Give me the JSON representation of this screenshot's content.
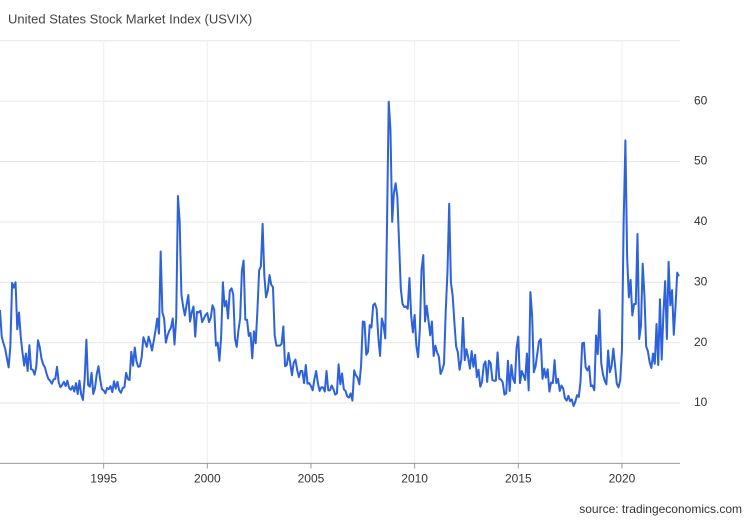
{
  "chart_data": {
    "type": "line",
    "title": "United States Stock Market Index (USVIX)",
    "source": "source: tradingeconomics.com",
    "xlim": [
      1990,
      2022.8
    ],
    "xticks": [
      1995,
      2000,
      2005,
      2010,
      2015,
      2020
    ],
    "ylim": [
      0,
      70
    ],
    "yticks": [
      10,
      20,
      30,
      40,
      50,
      60
    ],
    "grid": true,
    "series": [
      {
        "name": "USVIX",
        "color": "#2d62dc",
        "x": [
          1990,
          1990.083,
          1990.167,
          1990.25,
          1990.333,
          1990.417,
          1990.5,
          1990.583,
          1990.667,
          1990.75,
          1990.833,
          1990.917,
          1991,
          1991.083,
          1991.167,
          1991.25,
          1991.333,
          1991.417,
          1991.5,
          1991.583,
          1991.667,
          1991.75,
          1991.833,
          1991.917,
          1992,
          1992.083,
          1992.167,
          1992.25,
          1992.333,
          1992.417,
          1992.5,
          1992.583,
          1992.667,
          1992.75,
          1992.833,
          1992.917,
          1993,
          1993.083,
          1993.167,
          1993.25,
          1993.333,
          1993.417,
          1993.5,
          1993.583,
          1993.667,
          1993.75,
          1993.833,
          1993.917,
          1994,
          1994.083,
          1994.167,
          1994.25,
          1994.333,
          1994.417,
          1994.5,
          1994.583,
          1994.667,
          1994.75,
          1994.833,
          1994.917,
          1995,
          1995.083,
          1995.167,
          1995.25,
          1995.333,
          1995.417,
          1995.5,
          1995.583,
          1995.667,
          1995.75,
          1995.833,
          1995.917,
          1996,
          1996.083,
          1996.167,
          1996.25,
          1996.333,
          1996.417,
          1996.5,
          1996.583,
          1996.667,
          1996.75,
          1996.833,
          1996.917,
          1997,
          1997.083,
          1997.167,
          1997.25,
          1997.333,
          1997.417,
          1997.5,
          1997.583,
          1997.667,
          1997.75,
          1997.833,
          1997.917,
          1998,
          1998.083,
          1998.167,
          1998.25,
          1998.333,
          1998.417,
          1998.5,
          1998.583,
          1998.667,
          1998.75,
          1998.833,
          1998.917,
          1999,
          1999.083,
          1999.167,
          1999.25,
          1999.333,
          1999.417,
          1999.5,
          1999.583,
          1999.667,
          1999.75,
          1999.833,
          1999.917,
          2000,
          2000.083,
          2000.167,
          2000.25,
          2000.333,
          2000.417,
          2000.5,
          2000.583,
          2000.667,
          2000.75,
          2000.833,
          2000.917,
          2001,
          2001.083,
          2001.167,
          2001.25,
          2001.333,
          2001.417,
          2001.5,
          2001.583,
          2001.667,
          2001.75,
          2001.833,
          2001.917,
          2002,
          2002.083,
          2002.167,
          2002.25,
          2002.333,
          2002.417,
          2002.5,
          2002.583,
          2002.667,
          2002.75,
          2002.833,
          2002.917,
          2003,
          2003.083,
          2003.167,
          2003.25,
          2003.333,
          2003.417,
          2003.5,
          2003.583,
          2003.667,
          2003.75,
          2003.833,
          2003.917,
          2004,
          2004.083,
          2004.167,
          2004.25,
          2004.333,
          2004.417,
          2004.5,
          2004.583,
          2004.667,
          2004.75,
          2004.833,
          2004.917,
          2005,
          2005.083,
          2005.167,
          2005.25,
          2005.333,
          2005.417,
          2005.5,
          2005.583,
          2005.667,
          2005.75,
          2005.833,
          2005.917,
          2006,
          2006.083,
          2006.167,
          2006.25,
          2006.333,
          2006.417,
          2006.5,
          2006.583,
          2006.667,
          2006.75,
          2006.833,
          2006.917,
          2007,
          2007.083,
          2007.167,
          2007.25,
          2007.333,
          2007.417,
          2007.5,
          2007.583,
          2007.667,
          2007.75,
          2007.833,
          2007.917,
          2008,
          2008.083,
          2008.167,
          2008.25,
          2008.333,
          2008.417,
          2008.5,
          2008.583,
          2008.667,
          2008.75,
          2008.833,
          2008.917,
          2009,
          2009.083,
          2009.167,
          2009.25,
          2009.333,
          2009.417,
          2009.5,
          2009.583,
          2009.667,
          2009.75,
          2009.833,
          2009.917,
          2010,
          2010.083,
          2010.167,
          2010.25,
          2010.333,
          2010.417,
          2010.5,
          2010.583,
          2010.667,
          2010.75,
          2010.833,
          2010.917,
          2011,
          2011.083,
          2011.167,
          2011.25,
          2011.333,
          2011.417,
          2011.5,
          2011.583,
          2011.667,
          2011.75,
          2011.833,
          2011.917,
          2012,
          2012.083,
          2012.167,
          2012.25,
          2012.333,
          2012.417,
          2012.5,
          2012.583,
          2012.667,
          2012.75,
          2012.833,
          2012.917,
          2013,
          2013.083,
          2013.167,
          2013.25,
          2013.333,
          2013.417,
          2013.5,
          2013.583,
          2013.667,
          2013.75,
          2013.833,
          2013.917,
          2014,
          2014.083,
          2014.167,
          2014.25,
          2014.333,
          2014.417,
          2014.5,
          2014.583,
          2014.667,
          2014.75,
          2014.833,
          2014.917,
          2015,
          2015.083,
          2015.167,
          2015.25,
          2015.333,
          2015.417,
          2015.5,
          2015.583,
          2015.667,
          2015.75,
          2015.833,
          2015.917,
          2016,
          2016.083,
          2016.167,
          2016.25,
          2016.333,
          2016.417,
          2016.5,
          2016.583,
          2016.667,
          2016.75,
          2016.833,
          2016.917,
          2017,
          2017.083,
          2017.167,
          2017.25,
          2017.333,
          2017.417,
          2017.5,
          2017.583,
          2017.667,
          2017.75,
          2017.833,
          2017.917,
          2018,
          2018.083,
          2018.167,
          2018.25,
          2018.333,
          2018.417,
          2018.5,
          2018.583,
          2018.667,
          2018.75,
          2018.833,
          2018.917,
          2019,
          2019.083,
          2019.167,
          2019.25,
          2019.333,
          2019.417,
          2019.5,
          2019.583,
          2019.667,
          2019.75,
          2019.833,
          2019.917,
          2020,
          2020.083,
          2020.167,
          2020.25,
          2020.333,
          2020.417,
          2020.5,
          2020.583,
          2020.667,
          2020.75,
          2020.833,
          2020.917,
          2021,
          2021.083,
          2021.167,
          2021.25,
          2021.333,
          2021.417,
          2021.5,
          2021.583,
          2021.667,
          2021.75,
          2021.833,
          2021.917,
          2022,
          2022.083,
          2022.167,
          2022.25,
          2022.333,
          2022.417,
          2022.5,
          2022.583,
          2022.667,
          2022.75
        ],
        "values": [
          25.4,
          21.0,
          19.9,
          19.0,
          17.4,
          15.9,
          19.5,
          29.9,
          29.1,
          30.0,
          22.2,
          25.0,
          21.0,
          18.4,
          16.2,
          18.2,
          15.3,
          19.6,
          15.6,
          15.5,
          14.7,
          16.0,
          20.4,
          19.3,
          17.4,
          16.4,
          15.9,
          14.8,
          14.0,
          13.7,
          13.2,
          13.9,
          14.0,
          16.0,
          13.4,
          12.6,
          13.0,
          13.5,
          12.8,
          13.7,
          12.5,
          12.2,
          12.8,
          11.9,
          13.3,
          11.5,
          13.7,
          11.4,
          10.5,
          14.0,
          20.5,
          13.0,
          12.7,
          15.0,
          11.5,
          12.5,
          14.8,
          16.1,
          13.9,
          12.3,
          12.1,
          11.6,
          12.5,
          12.3,
          12.8,
          11.8,
          13.6,
          12.4,
          13.5,
          12.1,
          11.7,
          12.5,
          12.6,
          15.0,
          14.0,
          13.8,
          18.5,
          16.2,
          19.2,
          16.9,
          16.0,
          16.1,
          17.6,
          20.9,
          20.1,
          19.3,
          21.0,
          20.0,
          18.7,
          20.3,
          22.0,
          24.0,
          21.5,
          35.1,
          25.0,
          24.0,
          20.0,
          21.2,
          22.0,
          22.5,
          24.0,
          19.7,
          24.0,
          44.3,
          40.0,
          28.0,
          26.0,
          24.5,
          26.3,
          27.9,
          23.5,
          25.0,
          26.0,
          21.0,
          25.1,
          25.0,
          25.3,
          23.4,
          24.0,
          24.6,
          24.9,
          23.4,
          24.1,
          26.2,
          25.5,
          19.5,
          20.0,
          17.0,
          21.0,
          30.0,
          26.0,
          26.9,
          24.0,
          28.6,
          29.0,
          28.0,
          20.7,
          19.3,
          22.0,
          24.0,
          31.9,
          33.6,
          23.8,
          23.8,
          21.1,
          21.6,
          17.4,
          21.9,
          19.9,
          25.4,
          32.0,
          32.6,
          39.7,
          31.1,
          27.5,
          28.6,
          31.2,
          29.6,
          29.2,
          21.2,
          19.5,
          19.5,
          19.5,
          19.8,
          22.7,
          16.1,
          16.3,
          18.3,
          16.6,
          14.6,
          16.7,
          17.2,
          15.5,
          14.3,
          15.3,
          15.3,
          13.3,
          16.3,
          13.2,
          13.3,
          12.8,
          12.1,
          14.0,
          15.3,
          13.3,
          12.0,
          12.6,
          12.6,
          11.9,
          15.3,
          12.1,
          12.1,
          12.9,
          12.3,
          11.4,
          11.6,
          16.4,
          13.1,
          14.9,
          12.3,
          12.0,
          11.1,
          10.9,
          11.6,
          10.4,
          15.4,
          14.6,
          14.2,
          13.1,
          16.2,
          23.5,
          23.4,
          18.0,
          18.5,
          22.9,
          22.5,
          26.2,
          26.5,
          25.6,
          20.8,
          17.8,
          24.0,
          22.9,
          20.7,
          39.4,
          59.9,
          55.3,
          40.0,
          44.8,
          46.4,
          44.1,
          36.5,
          28.9,
          26.4,
          25.9,
          26.0,
          25.6,
          30.7,
          24.5,
          21.7,
          24.6,
          19.5,
          17.6,
          22.1,
          32.1,
          34.5,
          23.5,
          26.1,
          23.7,
          21.2,
          23.5,
          17.8,
          19.5,
          18.4,
          17.7,
          14.8,
          15.5,
          16.5,
          25.3,
          31.6,
          43.0,
          30.0,
          27.8,
          23.4,
          19.4,
          18.4,
          15.5,
          17.2,
          24.1,
          17.1,
          18.9,
          17.5,
          15.7,
          18.6,
          16.0,
          18.0,
          14.3,
          15.5,
          12.7,
          13.5,
          16.3,
          16.9,
          13.5,
          17.0,
          16.6,
          13.8,
          13.7,
          13.7,
          18.4,
          14.0,
          13.9,
          13.4,
          11.4,
          11.6,
          17.0,
          12.0,
          16.3,
          14.0,
          13.3,
          19.2,
          21.0,
          13.3,
          15.3,
          14.6,
          13.8,
          18.2,
          12.1,
          28.4,
          24.5,
          15.1,
          16.1,
          18.2,
          20.2,
          20.6,
          14.0,
          15.7,
          14.2,
          15.6,
          11.9,
          13.4,
          13.3,
          17.1,
          13.3,
          14.0,
          12.0,
          12.9,
          12.4,
          10.8,
          10.4,
          11.2,
          10.3,
          10.6,
          9.5,
          10.2,
          11.3,
          11.0,
          13.5,
          19.9,
          20.0,
          15.9,
          15.4,
          16.1,
          12.8,
          12.9,
          12.1,
          21.2,
          18.1,
          25.4,
          16.6,
          14.8,
          13.7,
          13.1,
          18.7,
          15.1,
          16.1,
          19.0,
          16.2,
          13.2,
          12.6,
          13.8,
          18.8,
          40.1,
          53.5,
          34.2,
          27.5,
          30.4,
          24.5,
          26.4,
          26.4,
          38.0,
          20.6,
          22.8,
          33.1,
          27.9,
          19.4,
          18.6,
          16.8,
          15.8,
          18.2,
          16.5,
          23.1,
          16.3,
          27.2,
          17.2,
          24.8,
          30.2,
          20.6,
          33.4,
          26.2,
          28.7,
          21.3,
          25.9,
          31.6,
          31.0
        ]
      }
    ]
  }
}
